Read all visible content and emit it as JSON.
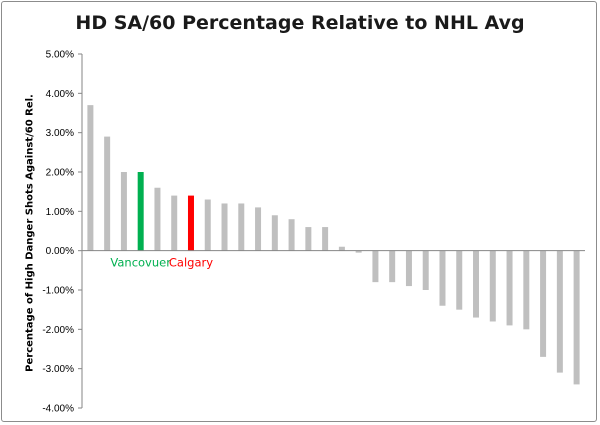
{
  "chart_data": {
    "type": "bar",
    "title": "HD SA/60 Percentage Relative to NHL Avg",
    "ylabel": "Percentage of High Danger Shots Against/60 Rel.",
    "xlabel": "",
    "ylim": [
      -4,
      5
    ],
    "yticks": [
      5,
      4,
      3,
      2,
      1,
      0,
      -1,
      -2,
      -3,
      -4
    ],
    "ytick_labels": [
      "5.00%",
      "4.00%",
      "3.00%",
      "2.00%",
      "1.00%",
      "0.00%",
      "-1.00%",
      "-2.00%",
      "-3.00%",
      "-4.00%"
    ],
    "grid": false,
    "legend": "none",
    "values": [
      3.7,
      2.9,
      2.0,
      2.0,
      1.6,
      1.4,
      1.4,
      1.3,
      1.2,
      1.2,
      1.1,
      0.9,
      0.8,
      0.6,
      0.6,
      0.1,
      -0.05,
      -0.8,
      -0.8,
      -0.9,
      -1.0,
      -1.4,
      -1.5,
      -1.7,
      -1.8,
      -1.9,
      -2.0,
      -2.7,
      -3.1,
      -3.4
    ],
    "annotations": [
      {
        "text": "Vancovuer",
        "bar_index": 3,
        "color": "#00b050"
      },
      {
        "text": "Calgary",
        "bar_index": 6,
        "color": "#ff0000"
      }
    ],
    "colors": {
      "default": "#bfbfbf",
      "axis": "#868686"
    }
  }
}
